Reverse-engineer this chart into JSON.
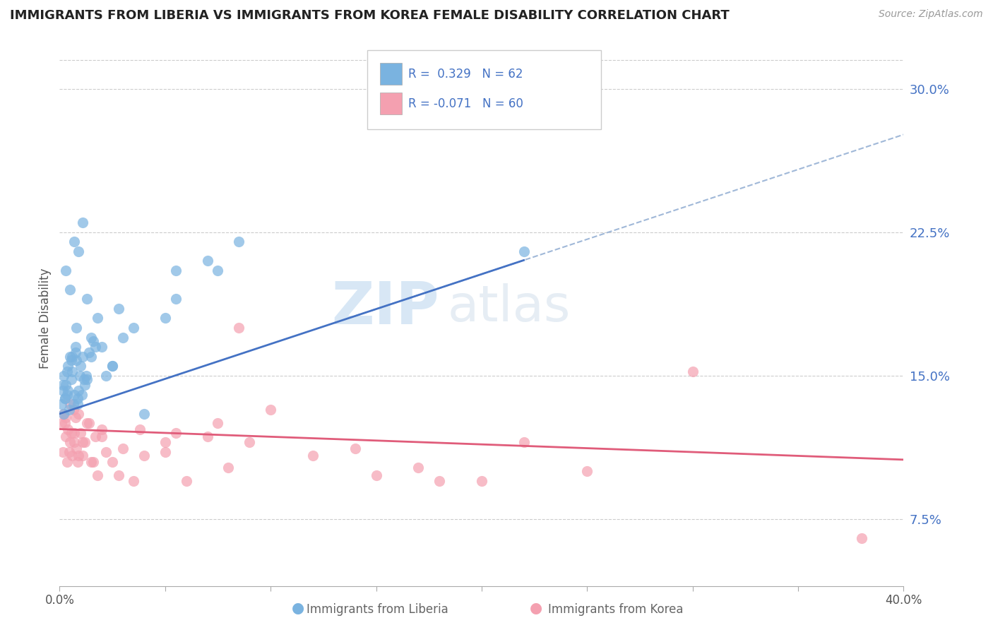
{
  "title": "IMMIGRANTS FROM LIBERIA VS IMMIGRANTS FROM KOREA FEMALE DISABILITY CORRELATION CHART",
  "source": "Source: ZipAtlas.com",
  "ylabel": "Female Disability",
  "xlim": [
    0.0,
    40.0
  ],
  "ylim": [
    4.0,
    32.0
  ],
  "yticks_right": [
    7.5,
    15.0,
    22.5,
    30.0
  ],
  "ytick_labels_right": [
    "7.5%",
    "15.0%",
    "22.5%",
    "30.0%"
  ],
  "liberia_color": "#7ab3e0",
  "korea_color": "#f4a0b0",
  "liberia_line_color": "#4472c4",
  "korea_line_color": "#e05c7a",
  "dash_line_color": "#aabcd4",
  "liberia_R": 0.329,
  "liberia_N": 62,
  "korea_R": -0.071,
  "korea_N": 60,
  "background_color": "#ffffff",
  "grid_color": "#cccccc",
  "watermark_zip": "ZIP",
  "watermark_atlas": "atlas",
  "liberia_x": [
    0.1,
    0.15,
    0.2,
    0.25,
    0.3,
    0.35,
    0.4,
    0.45,
    0.5,
    0.55,
    0.6,
    0.65,
    0.7,
    0.75,
    0.8,
    0.85,
    0.9,
    0.95,
    1.0,
    1.05,
    1.1,
    1.2,
    1.25,
    1.3,
    1.4,
    1.5,
    1.6,
    1.7,
    1.8,
    2.0,
    2.2,
    2.5,
    2.8,
    3.0,
    3.5,
    4.0,
    5.0,
    5.5,
    7.0,
    7.5,
    8.5,
    0.3,
    0.5,
    0.7,
    0.9,
    1.1,
    1.3,
    0.2,
    0.4,
    0.6,
    0.8,
    0.15,
    0.25,
    0.35,
    0.55,
    0.75,
    0.85,
    1.15,
    1.5,
    2.5,
    5.5,
    22.0
  ],
  "liberia_y": [
    13.5,
    14.2,
    15.0,
    13.8,
    14.5,
    14.0,
    15.5,
    13.2,
    16.0,
    14.8,
    15.2,
    13.5,
    14.0,
    16.5,
    15.8,
    13.8,
    14.2,
    15.0,
    15.5,
    14.0,
    16.0,
    14.5,
    15.0,
    14.8,
    16.2,
    17.0,
    16.8,
    16.5,
    18.0,
    16.5,
    15.0,
    15.5,
    18.5,
    17.0,
    17.5,
    13.0,
    18.0,
    20.5,
    21.0,
    20.5,
    22.0,
    20.5,
    19.5,
    22.0,
    21.5,
    23.0,
    19.0,
    13.0,
    14.2,
    16.0,
    17.5,
    14.5,
    13.8,
    15.2,
    15.8,
    16.2,
    13.5,
    14.8,
    16.0,
    15.5,
    19.0,
    21.5
  ],
  "korea_x": [
    0.1,
    0.15,
    0.2,
    0.25,
    0.3,
    0.35,
    0.4,
    0.45,
    0.5,
    0.55,
    0.6,
    0.65,
    0.7,
    0.75,
    0.8,
    0.85,
    0.9,
    1.0,
    1.1,
    1.2,
    1.4,
    1.5,
    1.7,
    1.8,
    2.0,
    2.2,
    2.5,
    3.0,
    3.5,
    4.0,
    5.0,
    5.5,
    6.0,
    7.0,
    7.5,
    8.0,
    9.0,
    10.0,
    12.0,
    14.0,
    15.0,
    17.0,
    18.0,
    20.0,
    25.0,
    30.0,
    38.0,
    0.3,
    0.5,
    0.7,
    0.9,
    1.1,
    1.3,
    1.6,
    2.0,
    2.8,
    3.8,
    5.0,
    8.5,
    22.0
  ],
  "korea_y": [
    12.5,
    11.0,
    13.0,
    12.5,
    11.8,
    10.5,
    12.2,
    11.0,
    13.5,
    12.0,
    10.8,
    13.2,
    11.5,
    12.8,
    11.2,
    10.5,
    13.0,
    12.0,
    10.8,
    11.5,
    12.5,
    10.5,
    11.8,
    9.8,
    12.2,
    11.0,
    10.5,
    11.2,
    9.5,
    10.8,
    11.5,
    12.0,
    9.5,
    11.8,
    12.5,
    10.2,
    11.5,
    13.2,
    10.8,
    11.2,
    9.8,
    10.2,
    9.5,
    9.5,
    10.0,
    15.2,
    6.5,
    12.8,
    11.5,
    12.0,
    10.8,
    11.5,
    12.5,
    10.5,
    11.8,
    9.8,
    12.2,
    11.0,
    17.5,
    11.5
  ]
}
